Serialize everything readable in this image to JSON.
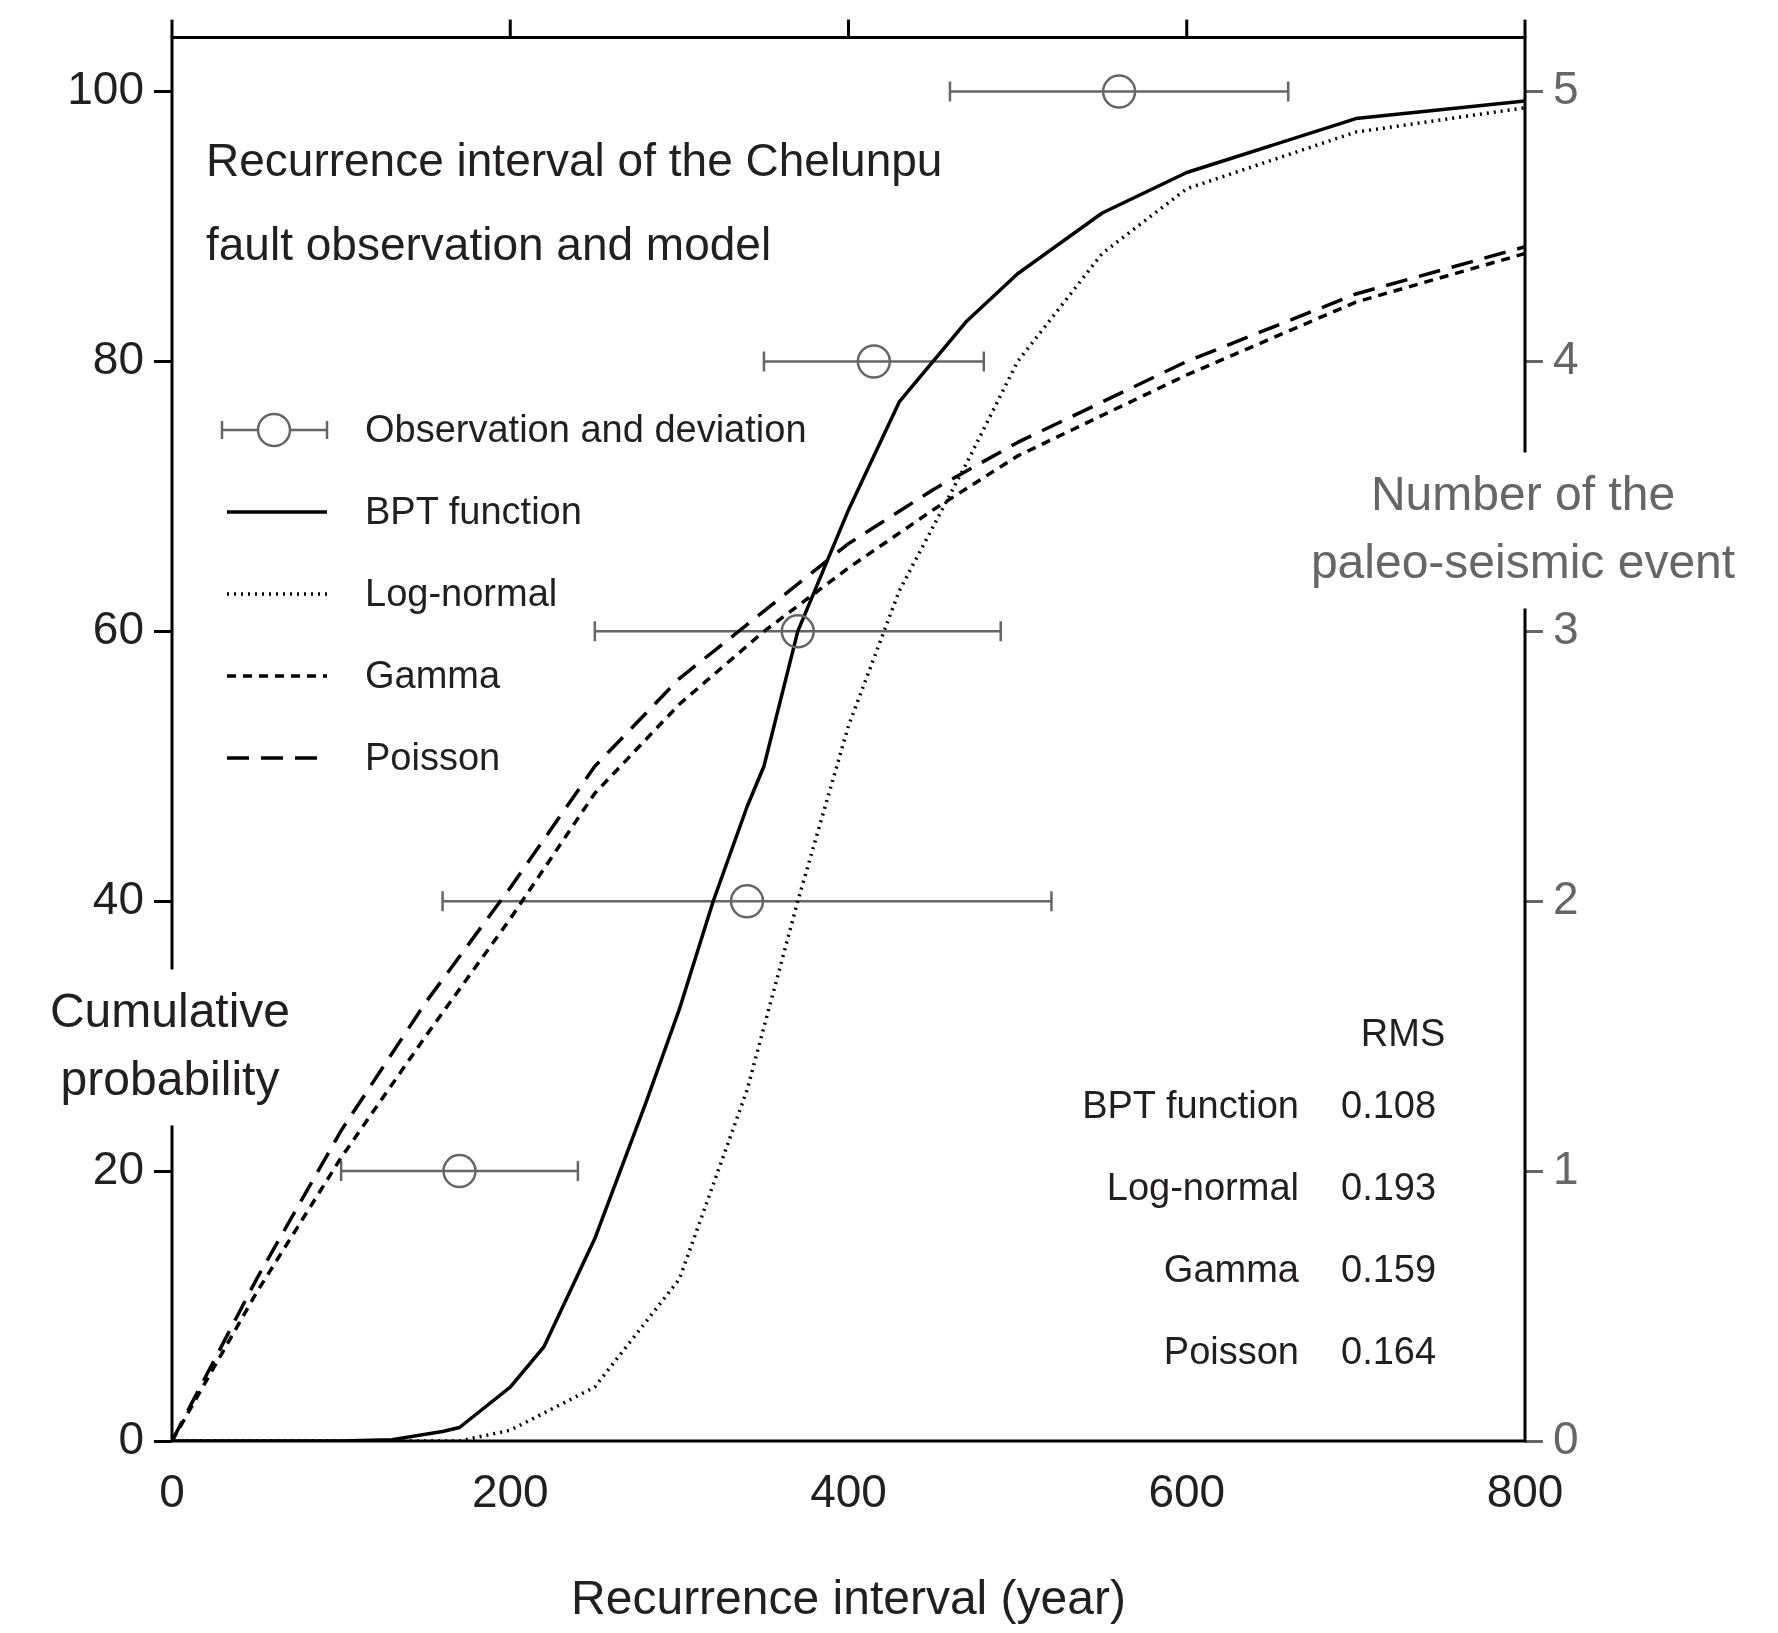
{
  "chart_data": {
    "type": "line",
    "title": "Recurrence interval of the Chelunpu fault observation and model",
    "xlabel": "Recurrence interval (year)",
    "ylabel": "Cumulative probability",
    "y2label": "Number of the paleo-seismic event",
    "xlim": [
      0,
      800
    ],
    "xticks": [
      0,
      200,
      400,
      600,
      800
    ],
    "ylim": [
      0,
      104
    ],
    "yticks": [
      0,
      20,
      40,
      60,
      80,
      100
    ],
    "y2lim": [
      0,
      5.2
    ],
    "y2ticks": [
      0,
      1,
      2,
      3,
      4,
      5
    ],
    "grid": false,
    "legend": "top left",
    "series": [
      {
        "name": "Observation and deviation",
        "type": "scatter",
        "axis": "y2",
        "marker": "circle",
        "color": "#666666",
        "x": [
          170,
          340,
          370,
          415,
          560
        ],
        "values": [
          1,
          2,
          3,
          4,
          5
        ],
        "xerrors": [
          [
            100,
            240
          ],
          [
            160,
            520
          ],
          [
            250,
            490
          ],
          [
            350,
            480
          ],
          [
            460,
            660
          ]
        ]
      },
      {
        "name": "BPT function",
        "line_style": "solid",
        "marker": "none",
        "color": "#000000",
        "x": [
          0,
          100,
          130,
          160,
          170,
          200,
          220,
          250,
          280,
          300,
          320,
          340,
          350,
          370,
          400,
          430,
          470,
          500,
          550,
          600,
          700,
          800
        ],
        "values": [
          0,
          0,
          0.1,
          0.7,
          1,
          4,
          7,
          15,
          25,
          32,
          40,
          47,
          50,
          60,
          69,
          77,
          83,
          86.5,
          91,
          94,
          98,
          99.3
        ]
      },
      {
        "name": "Log-normal",
        "line_style": "dotted",
        "marker": "none",
        "color": "#000000",
        "x": [
          0,
          170,
          200,
          250,
          300,
          340,
          370,
          400,
          430,
          470,
          500,
          550,
          600,
          700,
          800
        ],
        "values": [
          0,
          0,
          0.8,
          4,
          12,
          26,
          40,
          53,
          63,
          72.5,
          80,
          88,
          92.8,
          97,
          98.8
        ]
      },
      {
        "name": "Gamma",
        "line_style": "dashed",
        "marker": "none",
        "color": "#000000",
        "x": [
          0,
          50,
          100,
          150,
          200,
          250,
          300,
          350,
          400,
          450,
          500,
          600,
          700,
          800
        ],
        "values": [
          0,
          11,
          21,
          30,
          38.7,
          48,
          54.6,
          60,
          64.7,
          69,
          73,
          79,
          84.4,
          88
        ]
      },
      {
        "name": "Poisson",
        "line_style": "longdashed",
        "marker": "none",
        "color": "#000000",
        "x": [
          0,
          50,
          100,
          150,
          200,
          250,
          300,
          350,
          400,
          450,
          500,
          600,
          700,
          800
        ],
        "values": [
          0,
          12,
          23,
          32.5,
          41,
          50,
          56.5,
          61.5,
          66.5,
          70.5,
          74,
          80,
          85,
          88.5
        ]
      }
    ],
    "annotations": [
      "RMS",
      "BPT function",
      "0.108",
      "Log-normal",
      "0.193",
      "Gamma",
      "0.159",
      "Poisson",
      "0.164"
    ]
  }
}
